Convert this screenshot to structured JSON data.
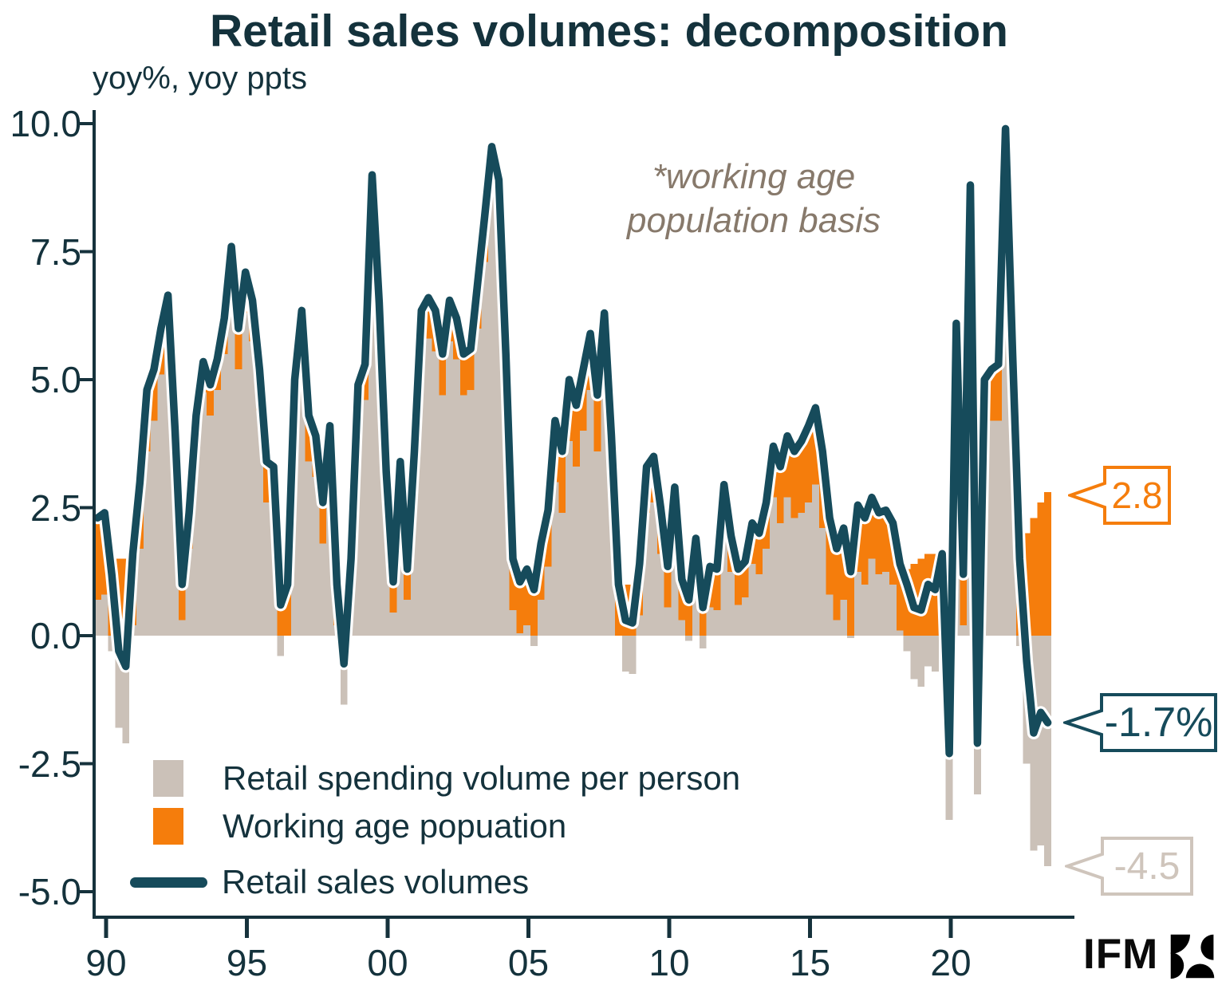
{
  "title": "Retail sales volumes: decomposition",
  "subtitle": "yoy%, yoy ppts",
  "note": {
    "line1": "*working age",
    "line2": "population basis"
  },
  "legend": {
    "items": [
      {
        "label": "Retail spending volume per person",
        "swatch": "gray-square"
      },
      {
        "label": "Working age popuation",
        "swatch": "orange-square"
      },
      {
        "label": "Retail sales volumes",
        "swatch": "teal-line"
      }
    ]
  },
  "annotations": [
    {
      "label": "2.8",
      "series": "Working age popuation",
      "color": "#F57D0C"
    },
    {
      "label": "-1.7%",
      "series": "Retail sales volumes",
      "color": "#164B5B"
    },
    {
      "label": "-4.5",
      "series": "Retail spending volume per person",
      "color": "#CFC5BC"
    }
  ],
  "branding": {
    "logo_text": "IFM"
  },
  "colors": {
    "teal": "#164B5B",
    "orange": "#F57D0C",
    "gray": "#CBC1B8",
    "graylight": "#CFC5BC",
    "note": "#87796B",
    "text": "#14323C",
    "axis": "#16323C",
    "line_casing": "#FFFFFF"
  },
  "chart_data": {
    "type": "bar",
    "subtype": "stacked-bars-with-line-overlay",
    "frequency": "quarterly",
    "start": "1990Q1",
    "end": "2023Q4",
    "xlabel": "",
    "ylabel": "yoy%, yoy ppts",
    "ylim": [
      -5.5,
      10.2
    ],
    "grid": false,
    "legend_position": "bottom-left-inside",
    "x_ticks": [
      "90",
      "95",
      "00",
      "05",
      "10",
      "15",
      "20"
    ],
    "y_ticks": [
      {
        "label": "10.0",
        "value": 10.0
      },
      {
        "label": "7.5",
        "value": 7.5
      },
      {
        "label": "5.0",
        "value": 5.0
      },
      {
        "label": "2.5",
        "value": 2.5
      },
      {
        "label": "0.0",
        "value": 0.0
      },
      {
        "label": "-2.5",
        "value": -2.5
      },
      {
        "label": "-5.0",
        "value": -5.0
      }
    ],
    "latest_values": {
      "retail_sales_volumes": "-1.7%",
      "working_age_population": 2.8,
      "retail_spending_per_person": -4.5
    },
    "series": [
      {
        "name": "Retail sales volumes",
        "id": "total",
        "type": "line",
        "color": "#164B5B",
        "values": [
          2.3,
          2.4,
          1.2,
          -0.3,
          -0.6,
          1.6,
          3.0,
          4.8,
          5.2,
          6.0,
          6.65,
          4.0,
          1.0,
          2.4,
          4.3,
          5.35,
          4.9,
          5.4,
          6.2,
          7.6,
          6.0,
          7.1,
          6.55,
          5.2,
          3.4,
          3.3,
          0.6,
          1.0,
          5.0,
          6.35,
          4.3,
          3.9,
          2.6,
          4.1,
          1.0,
          -0.55,
          1.5,
          4.9,
          5.3,
          9.0,
          6.5,
          3.2,
          1.05,
          3.4,
          1.3,
          3.6,
          6.35,
          6.6,
          6.35,
          5.5,
          6.55,
          6.2,
          5.5,
          5.6,
          6.9,
          8.2,
          9.55,
          8.9,
          5.5,
          1.5,
          1.05,
          1.3,
          0.9,
          1.8,
          2.45,
          4.2,
          3.6,
          5.0,
          4.5,
          5.2,
          5.9,
          4.7,
          6.3,
          3.9,
          1.0,
          0.3,
          0.25,
          1.4,
          3.3,
          3.5,
          2.5,
          1.35,
          2.9,
          1.1,
          0.7,
          1.9,
          0.55,
          1.35,
          1.3,
          2.95,
          1.95,
          1.3,
          1.45,
          2.2,
          2.0,
          2.6,
          3.7,
          3.3,
          3.9,
          3.6,
          3.8,
          4.1,
          4.45,
          3.6,
          2.3,
          1.7,
          2.1,
          1.25,
          2.55,
          2.3,
          2.7,
          2.4,
          2.45,
          2.2,
          1.4,
          1.0,
          0.55,
          0.5,
          1.0,
          0.9,
          1.6,
          -2.3,
          6.1,
          1.2,
          8.8,
          -2.1,
          5.0,
          5.2,
          5.3,
          9.9,
          5.5,
          1.5,
          -0.5,
          -1.9,
          -1.5,
          -1.7
        ]
      },
      {
        "name": "Working age popuation",
        "id": "working_age",
        "type": "bar",
        "color": "#F57D0C",
        "values": [
          1.6,
          1.6,
          1.5,
          1.5,
          1.5,
          1.4,
          1.3,
          1.2,
          1.0,
          0.9,
          0.8,
          0.8,
          0.7,
          0.7,
          0.6,
          0.6,
          0.6,
          0.6,
          0.7,
          0.7,
          0.8,
          0.8,
          0.8,
          0.8,
          0.8,
          0.9,
          1.0,
          1.0,
          1.0,
          0.9,
          0.9,
          0.8,
          0.8,
          0.8,
          0.8,
          0.8,
          0.7,
          0.7,
          0.7,
          0.7,
          0.7,
          0.6,
          0.6,
          0.6,
          0.6,
          0.7,
          0.7,
          0.8,
          0.8,
          0.8,
          0.8,
          0.8,
          0.8,
          0.8,
          0.9,
          0.9,
          0.9,
          0.9,
          1.0,
          1.0,
          1.0,
          1.1,
          1.1,
          1.1,
          1.1,
          1.2,
          1.2,
          1.2,
          1.2,
          1.2,
          1.1,
          1.1,
          1.1,
          1.1,
          1.0,
          1.0,
          1.0,
          1.0,
          0.9,
          0.9,
          0.9,
          0.8,
          0.8,
          0.8,
          0.8,
          0.8,
          0.8,
          0.8,
          0.8,
          0.7,
          0.7,
          0.7,
          0.7,
          0.8,
          0.8,
          0.9,
          1.0,
          1.1,
          1.2,
          1.3,
          1.4,
          1.5,
          1.5,
          1.5,
          1.5,
          1.4,
          1.4,
          1.3,
          1.3,
          1.3,
          1.2,
          1.2,
          1.2,
          1.2,
          1.3,
          1.3,
          1.4,
          1.5,
          1.6,
          1.6,
          1.5,
          1.3,
          1.3,
          1.0,
          1.2,
          1.0,
          0.9,
          1.0,
          1.1,
          1.3,
          1.5,
          1.7,
          2.0,
          2.3,
          2.6,
          2.8
        ]
      },
      {
        "name": "Retail spending volume per person",
        "id": "per_person",
        "type": "bar",
        "color": "#CBC1B8",
        "derivation": "retail sales volumes minus working age population contribution",
        "values": [
          0.7,
          0.8,
          -0.3,
          -1.8,
          -2.1,
          0.2,
          1.7,
          3.6,
          4.2,
          5.1,
          5.85,
          3.2,
          0.3,
          1.7,
          3.7,
          4.75,
          4.3,
          4.8,
          5.5,
          6.9,
          5.2,
          6.3,
          5.75,
          4.4,
          2.6,
          2.4,
          -0.4,
          0.0,
          4.0,
          5.45,
          3.4,
          3.1,
          1.8,
          3.3,
          0.2,
          -1.35,
          0.8,
          4.2,
          4.6,
          8.3,
          5.8,
          2.6,
          0.45,
          2.8,
          0.7,
          2.9,
          5.65,
          5.8,
          5.55,
          4.7,
          5.75,
          5.4,
          4.7,
          4.8,
          6.0,
          7.3,
          8.65,
          8.0,
          4.5,
          0.5,
          0.05,
          0.2,
          -0.2,
          0.7,
          1.35,
          3.0,
          2.4,
          3.8,
          3.3,
          4.0,
          4.8,
          3.6,
          5.2,
          2.8,
          0.0,
          -0.7,
          -0.75,
          0.4,
          2.4,
          2.6,
          1.6,
          0.55,
          2.1,
          0.3,
          -0.1,
          1.1,
          -0.25,
          0.55,
          0.5,
          2.25,
          1.25,
          0.6,
          0.75,
          1.4,
          1.2,
          1.7,
          2.7,
          2.2,
          2.7,
          2.3,
          2.4,
          2.6,
          2.95,
          2.1,
          0.8,
          0.3,
          0.7,
          -0.05,
          1.25,
          1.0,
          1.5,
          1.2,
          1.25,
          1.0,
          0.1,
          -0.3,
          -0.85,
          -1.0,
          -0.6,
          -0.7,
          0.1,
          -3.6,
          4.8,
          0.2,
          7.6,
          -3.1,
          4.1,
          4.2,
          4.2,
          8.6,
          4.0,
          -0.2,
          -2.5,
          -4.2,
          -4.1,
          -4.5
        ]
      }
    ]
  }
}
